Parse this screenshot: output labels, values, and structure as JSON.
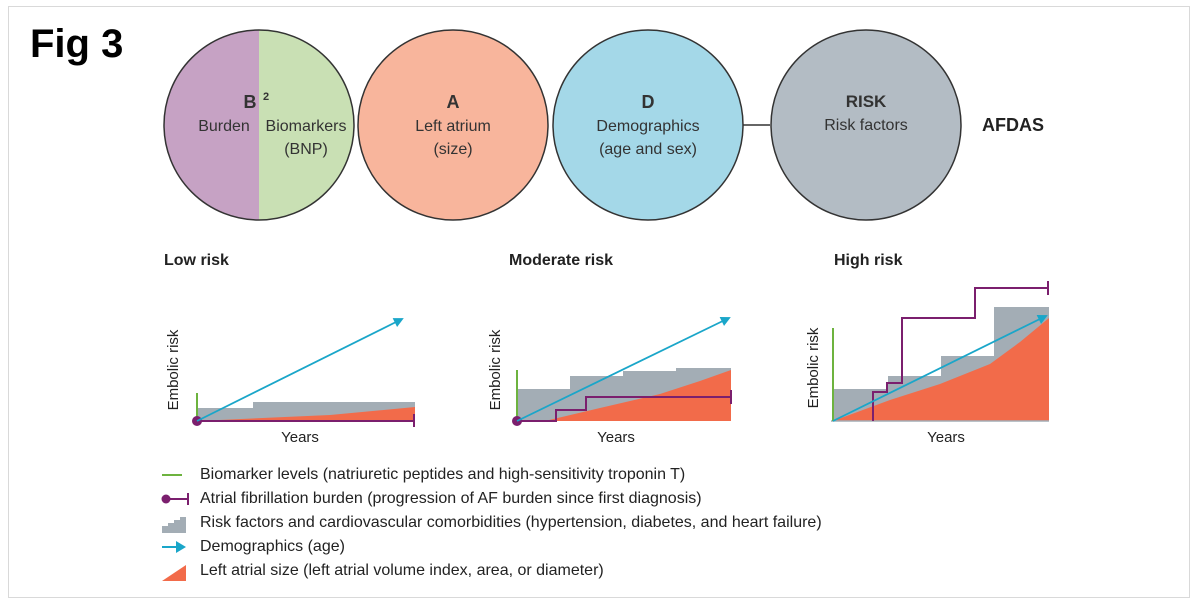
{
  "figure": {
    "label": "Fig 3",
    "acronym": "AFDAS"
  },
  "circles": [
    {
      "id": "b2",
      "letter": "B",
      "sup": "2",
      "left_text": "Burden",
      "right_text_line1": "Biomarkers",
      "right_text_line2": "(BNP)",
      "left_color": "#c6a2c4",
      "right_color": "#c9e0b4"
    },
    {
      "id": "a",
      "letter": "A",
      "line1": "Left atrium",
      "line2": "(size)",
      "color": "#f8b59c"
    },
    {
      "id": "d",
      "letter": "D",
      "line1": "Demographics",
      "line2": "(age and sex)",
      "color": "#a4d8e8"
    },
    {
      "id": "risk",
      "letter": "RISK",
      "line1": "Risk factors",
      "color": "#b3bcc4"
    }
  ],
  "panels": [
    {
      "title": "Low risk",
      "xlabel": "Years",
      "ylabel": "Embolic risk"
    },
    {
      "title": "Moderate risk",
      "xlabel": "Years",
      "ylabel": "Embolic risk"
    },
    {
      "title": "High risk",
      "xlabel": "Years",
      "ylabel": "Embolic risk"
    }
  ],
  "legend": [
    {
      "symbol": "green-line",
      "text": "Biomarker levels (natriuretic peptides and high-sensitivity troponin T)"
    },
    {
      "symbol": "purple-dot-line",
      "text": "Atrial fibrillation burden (progression of AF burden since first diagnosis)"
    },
    {
      "symbol": "grey-steps",
      "text": "Risk factors and cardiovascular comorbidities (hypertension, diabetes, and heart failure)"
    },
    {
      "symbol": "blue-arrow",
      "text": "Demographics (age)"
    },
    {
      "symbol": "orange-wedge",
      "text": "Left atrial size (left atrial volume index, area, or diameter)"
    }
  ],
  "colors": {
    "green": "#6db33f",
    "purple": "#7b1f6e",
    "grey": "#a3adb5",
    "blue": "#1aa6c9",
    "orange": "#f26b4a"
  }
}
